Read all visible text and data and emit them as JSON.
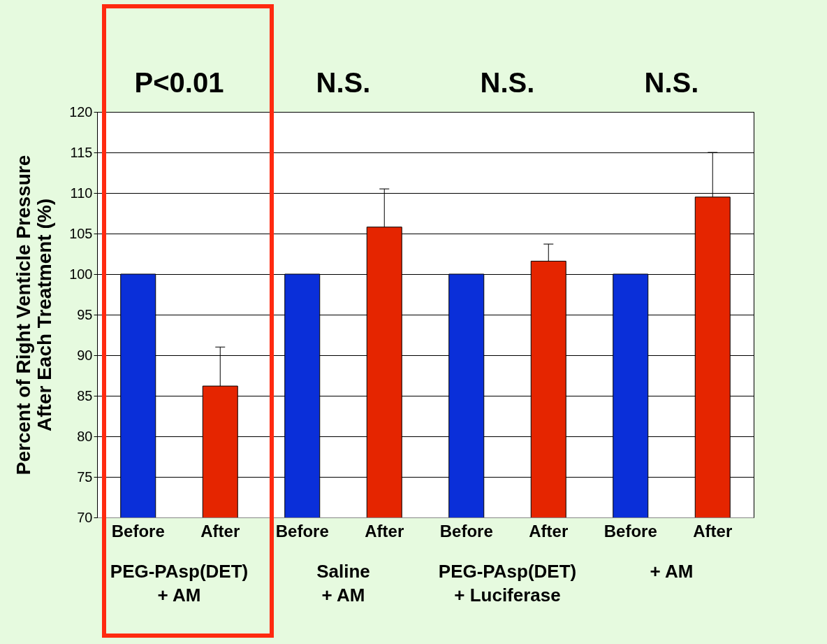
{
  "chart_data": {
    "type": "bar",
    "ylabel": "Percent of Right Venticle Pressure\nAfter Each Treatment (%)",
    "categories": [
      "Before",
      "After",
      "Before",
      "After",
      "Before",
      "After",
      "Before",
      "After"
    ],
    "values": [
      100,
      86.2,
      100,
      105.8,
      100,
      101.6,
      100,
      109.5
    ],
    "colors": [
      "#0a2fd9",
      "#e52500",
      "#0a2fd9",
      "#e52500",
      "#0a2fd9",
      "#e52500",
      "#0a2fd9",
      "#e52500"
    ],
    "errors": [
      null,
      [
        86.2,
        91
      ],
      null,
      [
        105.8,
        110.5
      ],
      null,
      [
        101.6,
        103.7
      ],
      null,
      [
        109.5,
        115
      ]
    ],
    "ylim": [
      70,
      120
    ],
    "yticks": [
      70,
      75,
      80,
      85,
      90,
      95,
      100,
      105,
      110,
      115,
      120
    ],
    "grid": "y",
    "annotations": [
      "P<0.01",
      "N.S.",
      "N.S.",
      "N.S.",
      "PEG-PAsp(DET)\n+ AM",
      "Saline\n+ AM",
      "PEG-PAsp(DET)\n+ Luciferase",
      "+ AM"
    ]
  }
}
